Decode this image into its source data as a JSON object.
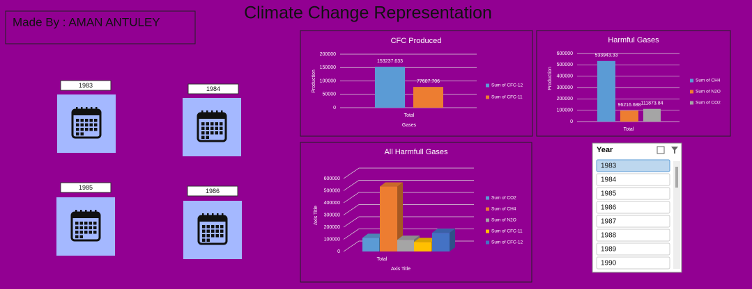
{
  "header": {
    "title": "Climate Change Representation",
    "made_by": "Made By : AMAN ANTULEY"
  },
  "year_tiles": [
    "1983",
    "1984",
    "1985",
    "1986"
  ],
  "slicer": {
    "title": "Year",
    "items": [
      "1983",
      "1984",
      "1985",
      "1986",
      "1987",
      "1988",
      "1989",
      "1990"
    ]
  },
  "chart_data": [
    {
      "type": "bar",
      "title": "CFC Produced",
      "x_label": "Gases",
      "y_label": "Production",
      "categories": [
        "Total"
      ],
      "series": [
        {
          "name": "Sum of CFC-12",
          "color": "#5b9bd5",
          "values": [
            153237.633
          ]
        },
        {
          "name": "Sum of CFC-11",
          "color": "#ed7d31",
          "values": [
            77607.706
          ]
        }
      ],
      "ylim": [
        0,
        200000
      ],
      "yticks": [
        0,
        50000,
        100000,
        150000,
        200000
      ],
      "grid": true,
      "legend": "right",
      "data_labels": true
    },
    {
      "type": "bar",
      "title": "Harmful Gases",
      "y_label": "Production",
      "categories": [
        "Total"
      ],
      "series": [
        {
          "name": "Sum of CH4",
          "color": "#5b9bd5",
          "values": [
            533943.33
          ]
        },
        {
          "name": "Sum of N2O",
          "color": "#ed7d31",
          "values": [
            96216.688
          ]
        },
        {
          "name": "Sum of CO2",
          "color": "#a5a5a5",
          "values": [
            111873.84
          ]
        }
      ],
      "ylim": [
        0,
        600000
      ],
      "yticks": [
        0,
        100000,
        200000,
        300000,
        400000,
        500000,
        600000
      ],
      "grid": true,
      "legend": "right",
      "data_labels": true
    },
    {
      "type": "bar3d",
      "title": "All Harmfull Gases",
      "x_label": "Axis Title",
      "y_label": "Axis Title",
      "categories": [
        "Total"
      ],
      "series": [
        {
          "name": "Sum of CO2",
          "color": "#5b9bd5",
          "values": [
            111873.84
          ]
        },
        {
          "name": "Sum of CH4",
          "color": "#ed7d31",
          "values": [
            533943.33
          ]
        },
        {
          "name": "Sum of N2O",
          "color": "#a5a5a5",
          "values": [
            96216.688
          ]
        },
        {
          "name": "Sum of CFC-11",
          "color": "#ffc000",
          "values": [
            77607.706
          ]
        },
        {
          "name": "Sum of CFC-12",
          "color": "#4472c4",
          "values": [
            153237.633
          ]
        }
      ],
      "ylim": [
        0,
        600000
      ],
      "yticks": [
        0,
        100000,
        200000,
        300000,
        400000,
        500000,
        600000
      ],
      "grid": true,
      "legend": "right",
      "data_labels": false
    }
  ]
}
